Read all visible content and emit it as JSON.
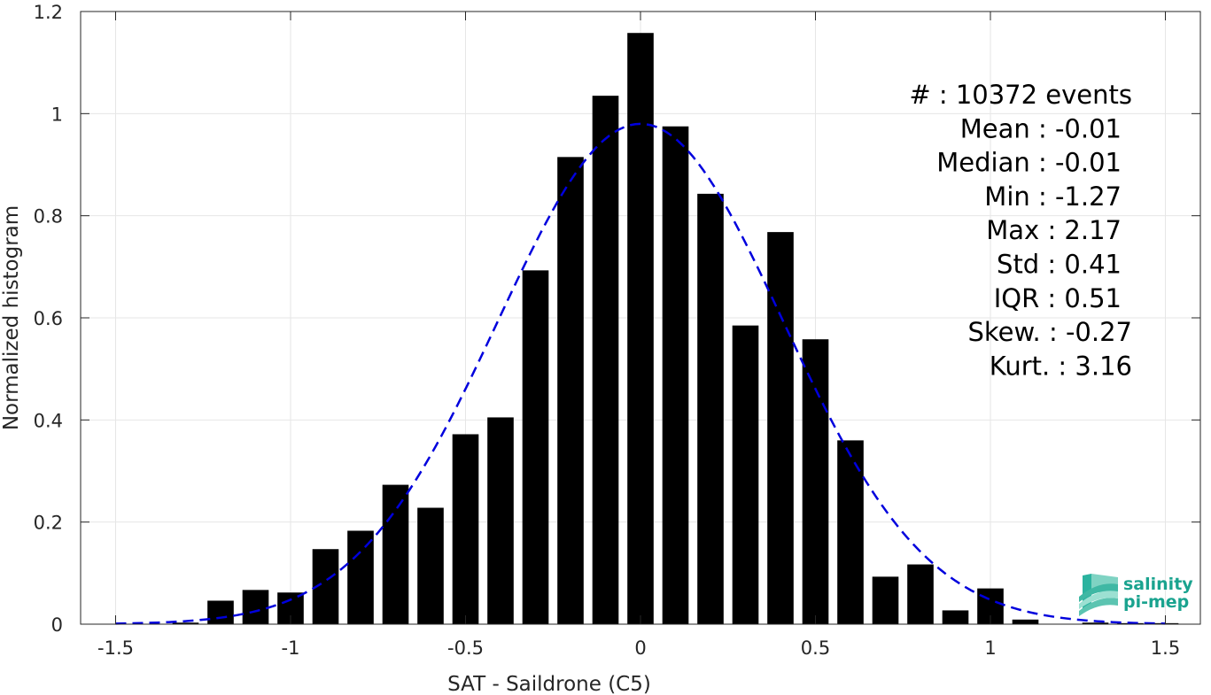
{
  "chart_data": {
    "type": "bar",
    "xlabel": "SAT - Saildrone (C5)",
    "ylabel": "Normalized histogram",
    "xlim": [
      -1.6,
      1.6
    ],
    "ylim": [
      0,
      1.2
    ],
    "xticks": [
      -1.5,
      -1,
      -0.5,
      0,
      0.5,
      1,
      1.5
    ],
    "xtick_labels": [
      "-1.5",
      "-1",
      "-0.5",
      "0",
      "0.5",
      "1",
      "1.5"
    ],
    "yticks": [
      0,
      0.2,
      0.4,
      0.6,
      0.8,
      1,
      1.2
    ],
    "ytick_labels": [
      "0",
      "0.2",
      "0.4",
      "0.6",
      "0.8",
      "1",
      "1.2"
    ],
    "grid": true,
    "bar_width": 0.075,
    "bar_color": "#000000",
    "bins": [
      -1.3,
      -1.2,
      -1.1,
      -1.0,
      -0.9,
      -0.8,
      -0.7,
      -0.6,
      -0.5,
      -0.4,
      -0.3,
      -0.2,
      -0.1,
      0.0,
      0.1,
      0.2,
      0.3,
      0.4,
      0.5,
      0.6,
      0.7,
      0.8,
      0.9,
      1.0,
      1.1,
      1.2,
      1.3,
      1.4,
      1.5
    ],
    "values": [
      0.003,
      0.046,
      0.067,
      0.062,
      0.147,
      0.183,
      0.273,
      0.228,
      0.372,
      0.405,
      0.693,
      0.915,
      1.035,
      1.158,
      0.975,
      0.843,
      0.585,
      0.768,
      0.558,
      0.36,
      0.093,
      0.117,
      0.027,
      0.07,
      0.009,
      0.0,
      0.003,
      0.002,
      0.002
    ],
    "fit_curve": {
      "type": "gaussian",
      "color": "#0000dd",
      "style": "dashed",
      "mean": 0.0,
      "std": 0.407,
      "peak": 0.98,
      "x_range": [
        -1.5,
        1.5
      ]
    },
    "stats": [
      {
        "label": "#  : 10372 events",
        "indent": 0
      },
      {
        "label": "Mean : -0.01",
        "indent": 1
      },
      {
        "label": "Median : -0.01",
        "indent": 1
      },
      {
        "label": "Min : -1.27",
        "indent": 1
      },
      {
        "label": "Max : 2.17",
        "indent": 1
      },
      {
        "label": "Std : 0.41",
        "indent": 1
      },
      {
        "label": "IQR : 0.51",
        "indent": 1
      },
      {
        "label": "Skew. : -0.27",
        "indent": 0
      },
      {
        "label": "Kurt. : 3.16",
        "indent": 0
      }
    ]
  },
  "logo": {
    "line1": "salinity",
    "line2": "pi-mep",
    "color": "#1aa38f"
  }
}
